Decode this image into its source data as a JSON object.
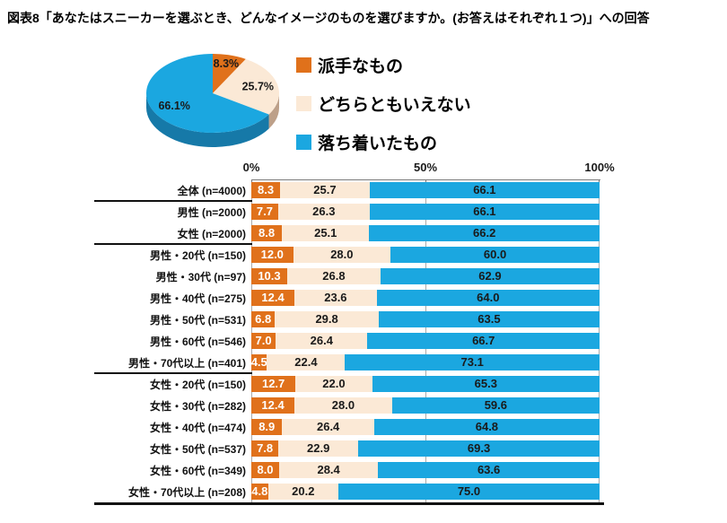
{
  "title": "図表8「あなたはスニーカーを選ぶとき、どんなイメージのものを選びますか。(お答えはそれぞれ１つ)」への回答",
  "colors": {
    "flashy": "#e0711b",
    "neither": "#fbe9d6",
    "calm": "#1ba7e0",
    "flashy_side": "#9e4d0e",
    "neither_side": "#bda089",
    "calm_side": "#1679a8",
    "axis": "#7a7a7a",
    "grid": "#ababab",
    "separator": "#111111",
    "value_on_flashy": "#ffffff",
    "value_text": "#1a1a1a"
  },
  "legend": {
    "items": [
      {
        "label": "派手なもの",
        "color_key": "flashy"
      },
      {
        "label": "どちらともいえない",
        "color_key": "neither"
      },
      {
        "label": "落ち着いたもの",
        "color_key": "calm"
      }
    ]
  },
  "chart_data": [
    {
      "type": "pie",
      "style": "3d",
      "start_angle_deg": 0,
      "direction": "clockwise",
      "labels": [
        "派手なもの",
        "どちらともいえない",
        "落ち着いたもの"
      ],
      "values": [
        8.3,
        25.7,
        66.1
      ],
      "value_labels": [
        "8.3%",
        "25.7%",
        "66.1%"
      ]
    },
    {
      "type": "bar",
      "orientation": "horizontal",
      "stacked": true,
      "x_axis": {
        "min": 0,
        "max": 100,
        "ticks": [
          {
            "label": "0%",
            "value": 0
          },
          {
            "label": "50%",
            "value": 50
          },
          {
            "label": "100%",
            "value": 100
          }
        ]
      },
      "series_names": [
        "派手なもの",
        "どちらともいえない",
        "落ち着いたもの"
      ],
      "rows": [
        {
          "label": "全体 (n=4000)",
          "values": [
            8.3,
            25.7,
            66.1
          ]
        },
        {
          "label": "男性 (n=2000)",
          "values": [
            7.7,
            26.3,
            66.1
          ]
        },
        {
          "label": "女性 (n=2000)",
          "values": [
            8.8,
            25.1,
            66.2
          ]
        },
        {
          "label": "男性・20代 (n=150)",
          "values": [
            12.0,
            28.0,
            60.0
          ]
        },
        {
          "label": "男性・30代 (n=97)",
          "values": [
            10.3,
            26.8,
            62.9
          ]
        },
        {
          "label": "男性・40代 (n=275)",
          "values": [
            12.4,
            23.6,
            64.0
          ]
        },
        {
          "label": "男性・50代 (n=531)",
          "values": [
            6.8,
            29.8,
            63.5
          ]
        },
        {
          "label": "男性・60代 (n=546)",
          "values": [
            7.0,
            26.4,
            66.7
          ]
        },
        {
          "label": "男性・70代以上 (n=401)",
          "values": [
            4.5,
            22.4,
            73.1
          ]
        },
        {
          "label": "女性・20代 (n=150)",
          "values": [
            12.7,
            22.0,
            65.3
          ]
        },
        {
          "label": "女性・30代 (n=282)",
          "values": [
            12.4,
            28.0,
            59.6
          ]
        },
        {
          "label": "女性・40代 (n=474)",
          "values": [
            8.9,
            26.4,
            64.8
          ]
        },
        {
          "label": "女性・50代 (n=537)",
          "values": [
            7.8,
            22.9,
            69.3
          ]
        },
        {
          "label": "女性・60代 (n=349)",
          "values": [
            8.0,
            28.4,
            63.6
          ]
        },
        {
          "label": "女性・70代以上 (n=208)",
          "values": [
            4.8,
            20.2,
            75.0
          ]
        }
      ],
      "separators_after_rows": [
        0,
        2,
        8
      ],
      "bottom_rule": true
    }
  ]
}
